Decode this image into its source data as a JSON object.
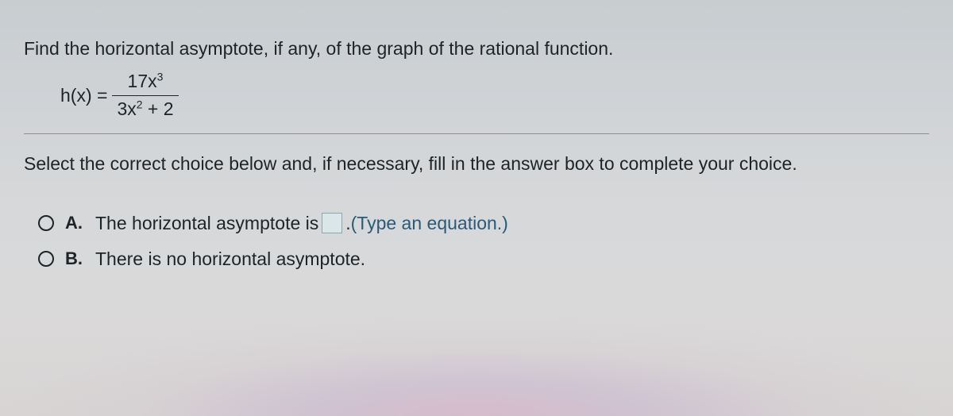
{
  "question": "Find the horizontal asymptote, if any, of the graph of the rational function.",
  "equation": {
    "lhs": "h(x) =",
    "numerator_base": "17x",
    "numerator_exp": "3",
    "denominator_left": "3x",
    "denominator_exp": "2",
    "denominator_right": " + 2"
  },
  "instruction": "Select the correct choice below and, if necessary, fill in the answer box to complete your choice.",
  "choices": {
    "a": {
      "label": "A.",
      "text_before": "The horizontal asymptote is ",
      "text_after": ". ",
      "hint": "(Type an equation.)"
    },
    "b": {
      "label": "B.",
      "text": "There is no horizontal asymptote."
    }
  },
  "colors": {
    "text": "#1d2428",
    "hint": "#2a5a7a",
    "divider": "#8a9094",
    "input_bg": "#dbe6e8",
    "input_border": "#8aa8b0"
  }
}
